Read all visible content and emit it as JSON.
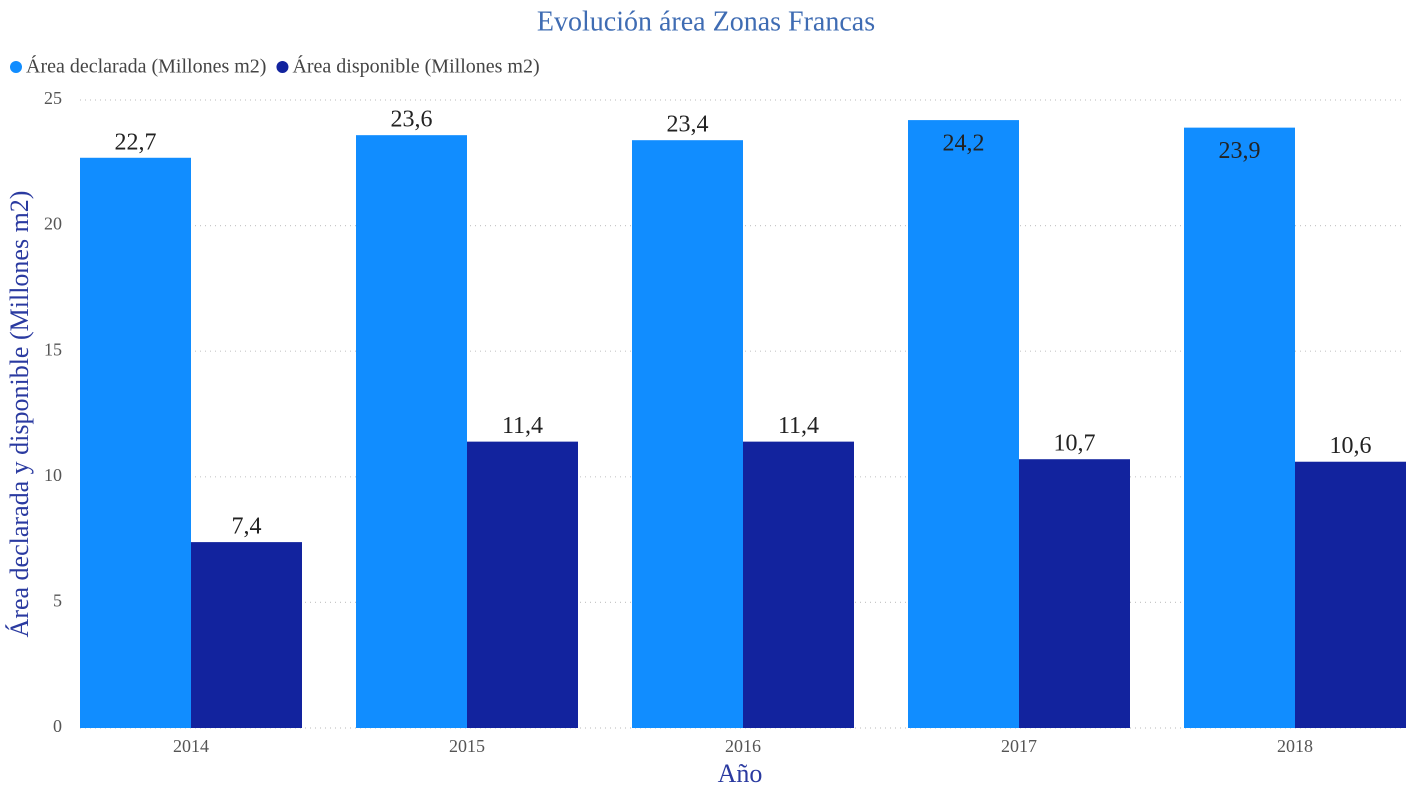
{
  "chart_data": {
    "type": "bar",
    "title": "Evolución área Zonas Francas",
    "categories": [
      "2014",
      "2015",
      "2016",
      "2017",
      "2018"
    ],
    "series": [
      {
        "name": "Área declarada (Millones m2)",
        "color": "#118dff",
        "values": [
          22.7,
          23.6,
          23.4,
          24.2,
          23.9
        ],
        "value_labels": [
          "22,7",
          "23,6",
          "23,4",
          "24,2",
          "23,9"
        ]
      },
      {
        "name": "Área disponible (Millones m2)",
        "color": "#12239e",
        "values": [
          7.4,
          11.4,
          11.4,
          10.7,
          10.6
        ],
        "value_labels": [
          "7,4",
          "11,4",
          "11,4",
          "10,7",
          "10,6"
        ]
      }
    ],
    "xlabel": "Año",
    "ylabel": "Área declarada y disponible (Millones m2)",
    "ylim": [
      0,
      25
    ],
    "yticks": [
      0,
      5,
      10,
      15,
      20,
      25
    ],
    "grid": true,
    "legend": "top-left"
  }
}
